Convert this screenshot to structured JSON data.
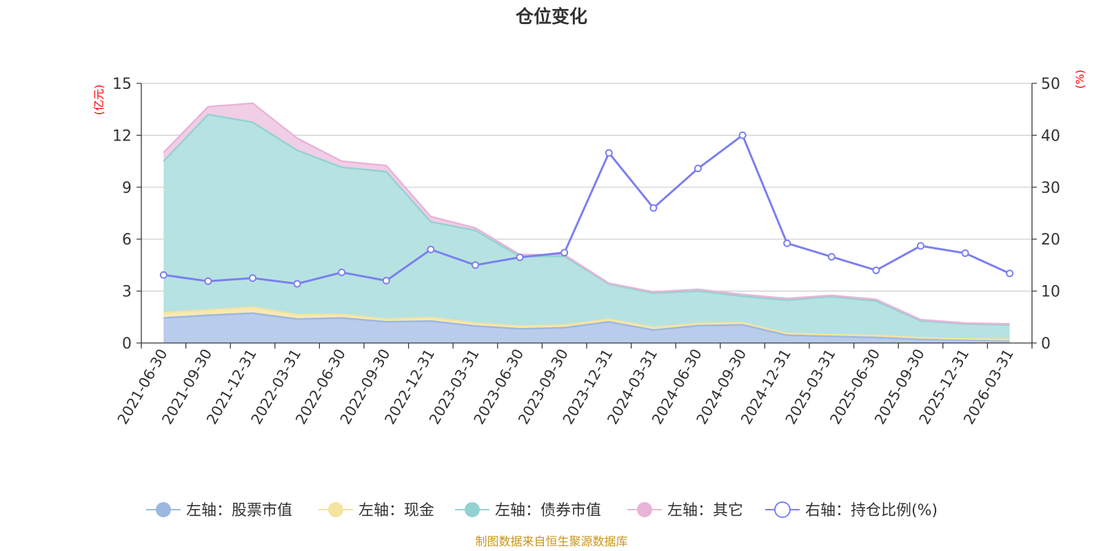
{
  "chart_data": {
    "type": "area",
    "title": "仓位变化",
    "left_axis_unit": "(亿元)",
    "right_axis_unit": "(%)",
    "left_ylim": [
      0,
      15
    ],
    "left_ticks": [
      0,
      3,
      6,
      9,
      12,
      15
    ],
    "right_ylim": [
      0,
      50
    ],
    "right_ticks": [
      0,
      10,
      20,
      30,
      40,
      50
    ],
    "categories": [
      "2021-06-30",
      "2021-09-30",
      "2021-12-31",
      "2022-03-31",
      "2022-06-30",
      "2022-09-30",
      "2022-12-31",
      "2023-03-31",
      "2023-06-30",
      "2023-09-30",
      "2023-12-31",
      "2024-03-31",
      "2024-06-30",
      "2024-09-30",
      "2024-12-31",
      "2025-03-31",
      "2025-06-30",
      "2025-09-30",
      "2025-12-31",
      "2026-03-31"
    ],
    "stacked_series": [
      {
        "name": "左轴：股票市值",
        "color": "#9db8e0",
        "fill": "#b5c9ea",
        "values": [
          1.45,
          1.6,
          1.72,
          1.38,
          1.45,
          1.22,
          1.27,
          0.98,
          0.82,
          0.88,
          1.22,
          0.75,
          1.0,
          1.05,
          0.45,
          0.38,
          0.32,
          0.22,
          0.18,
          0.14
        ]
      },
      {
        "name": "左轴：现金",
        "color": "#f5e3a0",
        "fill": "#f7e8b0",
        "values": [
          0.3,
          0.3,
          0.35,
          0.25,
          0.2,
          0.15,
          0.2,
          0.17,
          0.15,
          0.15,
          0.15,
          0.15,
          0.12,
          0.12,
          0.1,
          0.1,
          0.1,
          0.08,
          0.06,
          0.06
        ]
      },
      {
        "name": "左轴：债券市值",
        "color": "#93d2d2",
        "fill": "#b3e0e0",
        "values": [
          8.75,
          11.3,
          10.68,
          9.5,
          8.5,
          8.53,
          5.53,
          5.35,
          4.03,
          3.97,
          2.03,
          1.98,
          1.88,
          1.53,
          1.92,
          2.2,
          2.0,
          0.98,
          0.86,
          0.85
        ]
      },
      {
        "name": "左轴：其它",
        "color": "#e8b4d8",
        "fill": "#efcbe4",
        "values": [
          0.5,
          0.45,
          1.1,
          0.7,
          0.35,
          0.35,
          0.3,
          0.15,
          0.1,
          0.1,
          0.05,
          0.07,
          0.1,
          0.1,
          0.1,
          0.07,
          0.1,
          0.07,
          0.05,
          0.05
        ]
      }
    ],
    "line_series": {
      "name": "右轴：持仓比例(%)",
      "color": "#7b7ff0",
      "values": [
        13.1,
        11.9,
        12.5,
        11.4,
        13.6,
        12.0,
        18.0,
        15.0,
        16.5,
        17.4,
        36.6,
        26.0,
        33.6,
        40.0,
        19.2,
        16.6,
        14.0,
        18.7,
        17.3,
        13.4
      ]
    },
    "source": "制图数据来自恒生聚源数据库"
  }
}
